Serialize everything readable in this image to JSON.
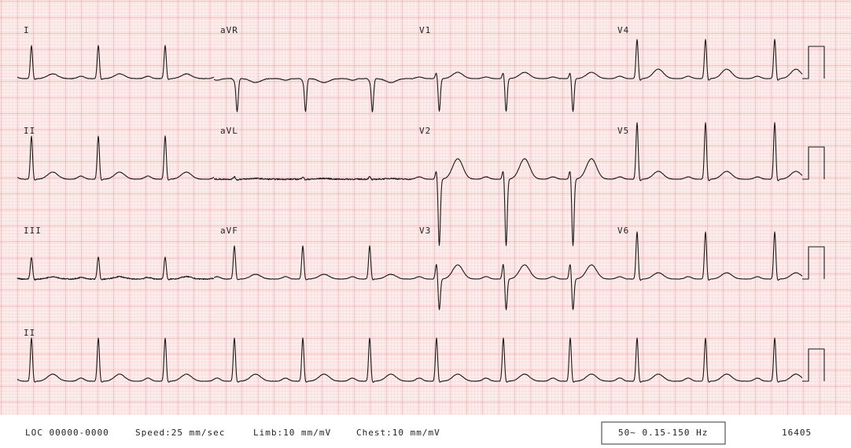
{
  "leads": {
    "rows": [
      [
        "I",
        "aVR",
        "V1",
        "V4"
      ],
      [
        "II",
        "aVL",
        "V2",
        "V5"
      ],
      [
        "III",
        "aVF",
        "V3",
        "V6"
      ]
    ],
    "rhythm": "II"
  },
  "footer": {
    "location": "LOC 00000-0000",
    "speed": "Speed:25 mm/sec",
    "limb": "Limb:10 mm/mV",
    "chest": "Chest:10 mm/mV",
    "filter": "50~ 0.15-150 Hz",
    "id": "16405"
  }
}
